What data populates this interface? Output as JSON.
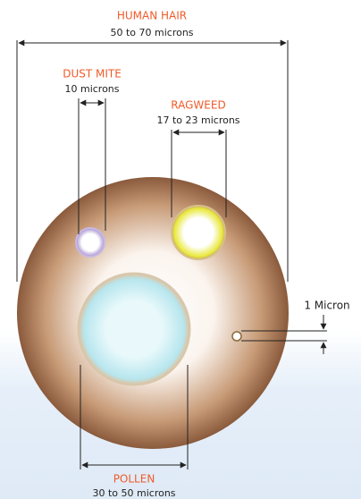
{
  "items": [
    {
      "name": "HUMAN HAIR",
      "size": "50 to 70 microns"
    },
    {
      "name": "DUST MITE",
      "size": "10 microns"
    },
    {
      "name": "RAGWEED",
      "size": "17 to 23 microns"
    },
    {
      "name": "POLLEN",
      "size": "30 to 50 microns"
    }
  ],
  "scale_label": "1 Micron"
}
